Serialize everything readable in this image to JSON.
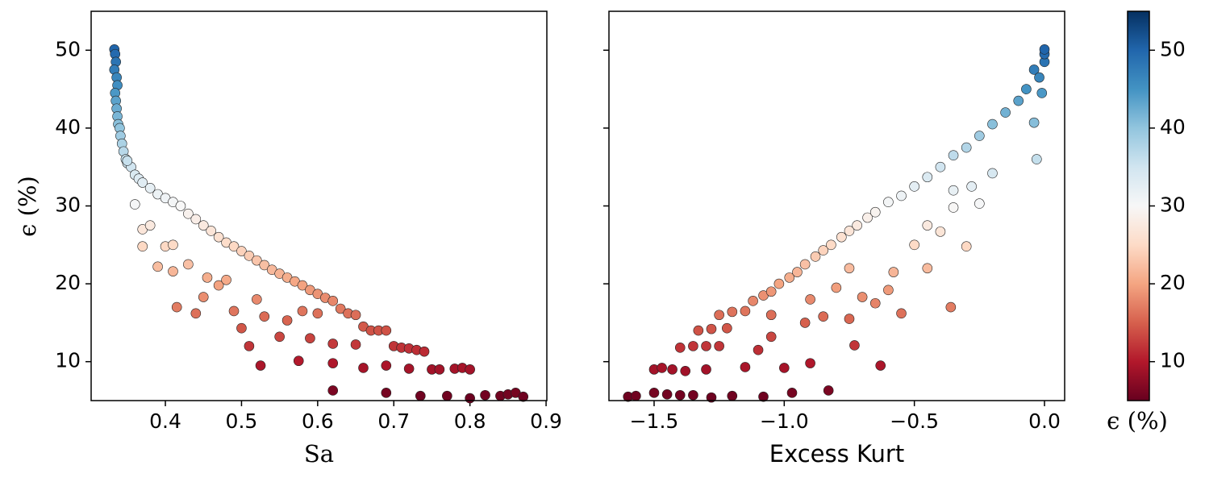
{
  "chart_data": [
    {
      "type": "scatter",
      "xlabel": "Sa",
      "color_by": "y",
      "xlim": [
        0.3025,
        0.901
      ],
      "ylim": [
        5,
        55
      ],
      "xticks": [
        0.4,
        0.5,
        0.6,
        0.7,
        0.8,
        0.9
      ],
      "yticks": [
        10,
        20,
        30,
        40,
        50
      ],
      "ytick_labels": true,
      "x": [
        0.333,
        0.334,
        0.335,
        0.333,
        0.336,
        0.337,
        0.334,
        0.335,
        0.336,
        0.337,
        0.338,
        0.34,
        0.341,
        0.343,
        0.345,
        0.348,
        0.35,
        0.355,
        0.36,
        0.365,
        0.37,
        0.38,
        0.39,
        0.4,
        0.41,
        0.42,
        0.43,
        0.44,
        0.45,
        0.46,
        0.47,
        0.48,
        0.49,
        0.5,
        0.51,
        0.52,
        0.53,
        0.54,
        0.55,
        0.56,
        0.57,
        0.58,
        0.59,
        0.6,
        0.61,
        0.62,
        0.63,
        0.64,
        0.65,
        0.66,
        0.67,
        0.68,
        0.69,
        0.7,
        0.71,
        0.72,
        0.73,
        0.74,
        0.75,
        0.76,
        0.78,
        0.79,
        0.8,
        0.82,
        0.84,
        0.85,
        0.86,
        0.87,
        0.35,
        0.36,
        0.37,
        0.37,
        0.39,
        0.4,
        0.41,
        0.415,
        0.44,
        0.45,
        0.455,
        0.47,
        0.49,
        0.5,
        0.51,
        0.525,
        0.53,
        0.55,
        0.56,
        0.575,
        0.59,
        0.6,
        0.62,
        0.62,
        0.62,
        0.65,
        0.66,
        0.69,
        0.69,
        0.72,
        0.735,
        0.77,
        0.8,
        0.58,
        0.52,
        0.48,
        0.43,
        0.41,
        0.38
      ],
      "values": [
        50.1,
        49.5,
        48.5,
        47.5,
        46.5,
        45.5,
        44.5,
        43.5,
        42.5,
        41.5,
        40.5,
        40,
        39,
        38,
        37,
        36,
        35.5,
        35,
        34,
        33.5,
        33,
        32.3,
        31.5,
        31,
        30.5,
        30,
        29,
        28.3,
        27.5,
        26.8,
        26,
        25.3,
        24.8,
        24.2,
        23.6,
        23,
        22.4,
        21.8,
        21.3,
        20.8,
        20.3,
        19.8,
        19.2,
        18.7,
        18.2,
        17.8,
        16.8,
        16.2,
        16,
        14.5,
        14,
        14,
        14,
        12,
        11.8,
        11.7,
        11.5,
        11.3,
        9,
        9,
        9.1,
        9.2,
        9,
        5.7,
        5.6,
        5.8,
        6,
        5.5,
        35.8,
        30.2,
        27,
        24.8,
        22.2,
        24.8,
        21.6,
        17,
        16.2,
        18.3,
        20.8,
        19.8,
        16.5,
        14.3,
        12,
        9.5,
        15.8,
        13.2,
        15.3,
        10.1,
        13,
        16.2,
        6.3,
        9.8,
        12.3,
        12.2,
        9.2,
        6,
        9.5,
        9.1,
        5.6,
        5.6,
        5.3,
        16.5,
        18,
        20.5,
        22.5,
        25,
        27.5
      ]
    },
    {
      "type": "scatter",
      "xlabel": "Excess Kurt",
      "color_by": "y",
      "xlim": [
        -1.6735,
        0.0775
      ],
      "ylim": [
        5,
        55
      ],
      "xticks": [
        {
          "value": -1.5,
          "label": "−1.5"
        },
        {
          "value": -1.0,
          "label": "−1.0"
        },
        {
          "value": -0.5,
          "label": "−0.5"
        },
        {
          "value": 0.0,
          "label": "0.0"
        }
      ],
      "yticks": [
        10,
        20,
        30,
        40,
        50
      ],
      "ytick_labels": false,
      "x": [
        -1.6,
        -1.57,
        -1.5,
        -1.45,
        -1.4,
        -1.5,
        -1.47,
        -1.43,
        -1.38,
        -1.4,
        -1.35,
        -1.3,
        -1.33,
        -1.28,
        -1.22,
        -1.25,
        -1.2,
        -1.15,
        -1.12,
        -1.08,
        -1.05,
        -1.02,
        -0.98,
        -0.95,
        -0.92,
        -0.88,
        -0.85,
        -0.82,
        -0.78,
        -0.75,
        -0.72,
        -0.68,
        -0.65,
        -0.6,
        -0.55,
        -0.5,
        -0.45,
        -0.4,
        -0.35,
        -0.3,
        -0.25,
        -0.2,
        -0.15,
        -0.1,
        -0.07,
        -0.04,
        -0.02,
        0,
        0,
        0,
        -0.01,
        -0.04,
        -0.03,
        -0.2,
        -0.25,
        -0.28,
        -0.3,
        -0.35,
        -0.36,
        -0.4,
        -0.45,
        -0.5,
        -0.55,
        -0.58,
        -0.63,
        -0.65,
        -0.7,
        -0.73,
        -0.75,
        -0.8,
        -0.83,
        -0.85,
        -0.9,
        -0.92,
        -0.97,
        -1.0,
        -1.05,
        -1.08,
        -1.1,
        -1.15,
        -1.2,
        -1.25,
        -1.28,
        -1.3,
        -1.35,
        -0.6,
        -0.75,
        -0.9,
        -1.05,
        -0.45,
        -0.35
      ],
      "values": [
        5.5,
        5.6,
        6,
        5.8,
        5.7,
        9,
        9.2,
        9,
        8.8,
        11.8,
        12,
        12,
        14,
        14.2,
        14.3,
        16,
        16.4,
        16.5,
        17.8,
        18.5,
        19,
        20,
        20.8,
        21.5,
        22.5,
        23.5,
        24.3,
        25,
        26,
        26.8,
        27.5,
        28.5,
        29.2,
        30.5,
        31.3,
        32.5,
        33.7,
        35,
        36.5,
        37.5,
        39,
        40.5,
        42,
        43.5,
        45,
        47.5,
        46.5,
        48.5,
        49.5,
        50.1,
        44.5,
        40.7,
        36,
        34.2,
        30.3,
        32.5,
        24.8,
        29.8,
        17,
        26.7,
        22,
        25,
        16.2,
        21.5,
        9.5,
        17.5,
        18.3,
        12.1,
        15.5,
        19.5,
        6.3,
        15.8,
        9.8,
        15,
        6,
        9.2,
        13.2,
        5.5,
        11.5,
        9.3,
        5.6,
        12,
        5.4,
        9,
        5.7,
        19.2,
        22,
        18,
        16,
        27.5,
        32
      ]
    }
  ],
  "ylabel": "ϵ (%)",
  "colorbar": {
    "label": "ϵ (%)",
    "lim": [
      5,
      55
    ],
    "ticks": [
      10,
      20,
      30,
      40,
      50
    ],
    "colormap": [
      "#67001f",
      "#b2182b",
      "#d6604d",
      "#f4a582",
      "#fddbc7",
      "#f7f7f7",
      "#d1e5f0",
      "#92c5de",
      "#4393c3",
      "#2166ac",
      "#053061"
    ]
  }
}
